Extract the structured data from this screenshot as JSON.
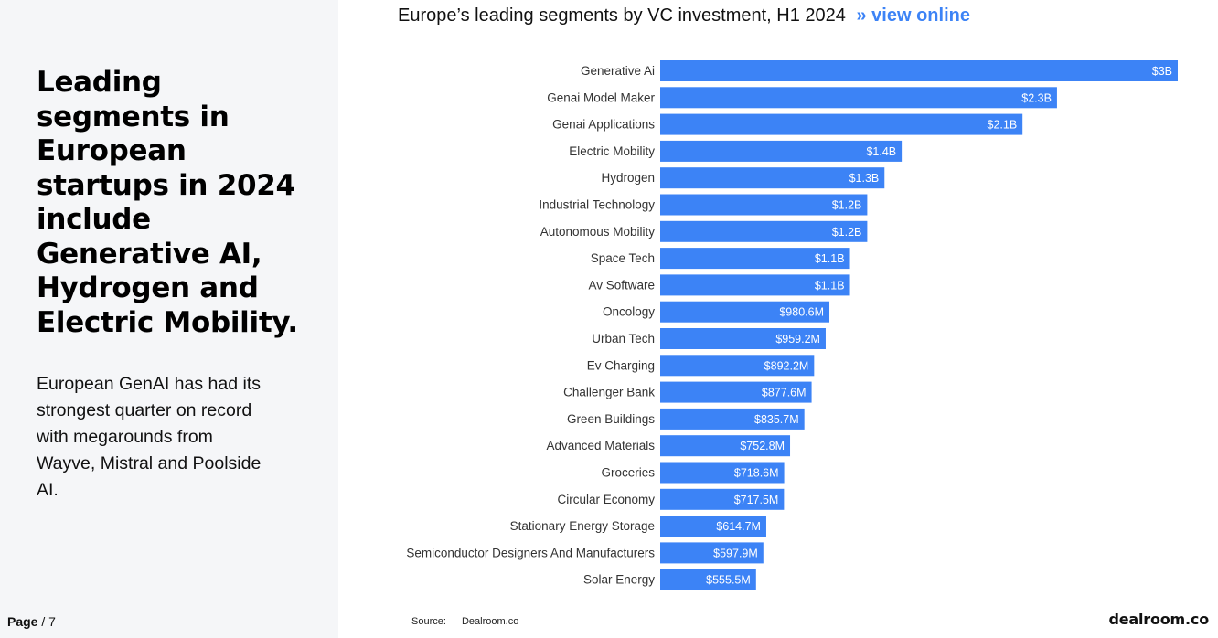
{
  "sidebar": {
    "headline": "Leading segments in European startups in 2024 include Generative AI, Hydrogen and Electric Mobility.",
    "body": "European GenAI has had its strongest quarter on record with megarounds from Wayve, Mistral and Poolside AI.",
    "page_label": "Page",
    "page_total": "/ 7"
  },
  "header": {
    "title": "Europe’s leading segments by VC investment, H1 2024",
    "link_arrow": "»",
    "link_label": "view online"
  },
  "footer": {
    "source_label": "Source:",
    "source_value": "Dealroom.co",
    "logo": "dealroom.co"
  },
  "colors": {
    "bar": "#3c83f6",
    "link": "#3c83f6",
    "panel": "#f5f6f8"
  },
  "chart_data": {
    "type": "bar",
    "orientation": "horizontal",
    "title": "Europe’s leading segments by VC investment, H1 2024",
    "categories": [
      "Generative Ai",
      "Genai Model Maker",
      "Genai Applications",
      "Electric Mobility",
      "Hydrogen",
      "Industrial Technology",
      "Autonomous Mobility",
      "Space Tech",
      "Av Software",
      "Oncology",
      "Urban Tech",
      "Ev Charging",
      "Challenger Bank",
      "Green Buildings",
      "Advanced Materials",
      "Groceries",
      "Circular Economy",
      "Stationary Energy Storage",
      "Semiconductor Designers And Manufacturers",
      "Solar Energy"
    ],
    "values": [
      3000,
      2300,
      2100,
      1400,
      1300,
      1200,
      1200,
      1100,
      1100,
      980.6,
      959.2,
      892.2,
      877.6,
      835.7,
      752.8,
      718.6,
      717.5,
      614.7,
      597.9,
      555.5
    ],
    "value_labels": [
      "$3B",
      "$2.3B",
      "$2.1B",
      "$1.4B",
      "$1.3B",
      "$1.2B",
      "$1.2B",
      "$1.1B",
      "$1.1B",
      "$980.6M",
      "$959.2M",
      "$892.2M",
      "$877.6M",
      "$835.7M",
      "$752.8M",
      "$718.6M",
      "$717.5M",
      "$614.7M",
      "$597.9M",
      "$555.5M"
    ],
    "unit": "USD millions",
    "xlim": [
      0,
      3000
    ],
    "grid": false,
    "legend": "none"
  }
}
